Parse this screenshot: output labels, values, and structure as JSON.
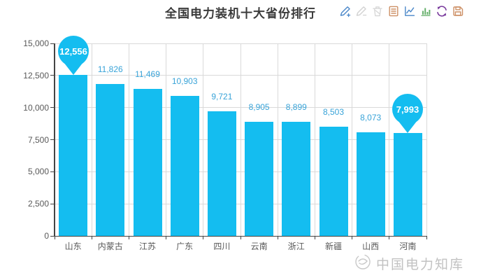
{
  "header": {
    "title": "全国电力装机十大省份排行",
    "toolbar_colors": {
      "edit_add": "#4a87c9",
      "edit_remove": "#d2d2d2",
      "delete": "#d8d8d8",
      "report": "#cd9066",
      "line_chart": "#4a87c9",
      "bar_chart": "#67b06c",
      "refresh": "#7a3b9d",
      "save": "#cd9066"
    }
  },
  "chart_data": {
    "type": "bar",
    "title": "全国电力装机十大省份排行",
    "categories": [
      "山东",
      "内蒙古",
      "江苏",
      "广东",
      "四川",
      "云南",
      "浙江",
      "新疆",
      "山西",
      "河南"
    ],
    "values": [
      12556,
      11826,
      11469,
      10903,
      9721,
      8905,
      8899,
      8503,
      8073,
      7993
    ],
    "value_labels": [
      "12,556",
      "11,826",
      "11,469",
      "10,903",
      "9,721",
      "8,905",
      "8,899",
      "8,503",
      "8,073",
      "7,993"
    ],
    "ylim": [
      0,
      15000
    ],
    "yticks": [
      0,
      2500,
      5000,
      7500,
      10000,
      12500,
      15000
    ],
    "ytick_labels": [
      "0",
      "2,500",
      "5,000",
      "7,500",
      "10,000",
      "12,500",
      "15,000"
    ],
    "xlabel": "",
    "ylabel": "",
    "grid": true,
    "legend": "none",
    "bar_color": "#14bdf0",
    "value_label_color": "#38a3d8",
    "pin_text_color": "#ffffff",
    "pin_indices": [
      0,
      9
    ]
  },
  "watermark": {
    "text": "中国电力知库"
  }
}
